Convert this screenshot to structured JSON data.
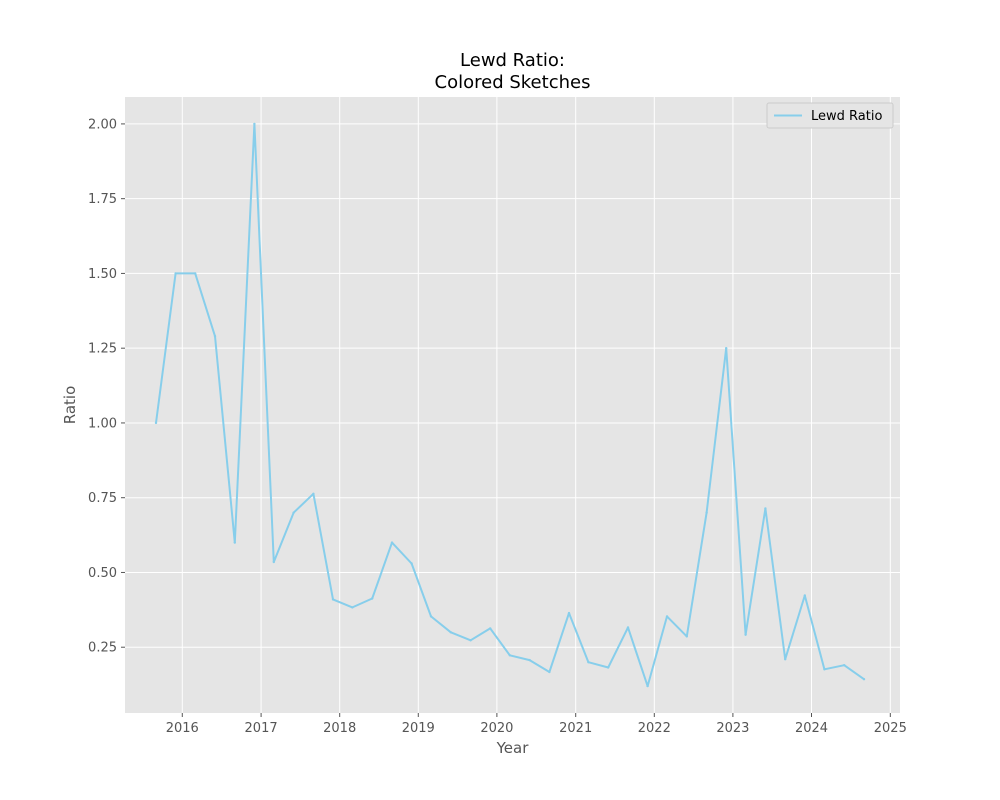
{
  "chart_data": {
    "type": "line",
    "title": [
      "Lewd Ratio:",
      "Colored Sketches"
    ],
    "xlabel": "Year",
    "ylabel": "Ratio",
    "x_ticks": [
      "2016",
      "2017",
      "2018",
      "2019",
      "2020",
      "2021",
      "2022",
      "2023",
      "2024",
      "2025"
    ],
    "y_ticks": [
      "0.25",
      "0.50",
      "0.75",
      "1.00",
      "1.25",
      "1.50",
      "1.75",
      "2.00"
    ],
    "xlim": [
      "2015-04-10",
      "2025-02-15"
    ],
    "ylim": [
      0.03,
      2.09
    ],
    "grid": true,
    "legend_position": "top-right",
    "series": [
      {
        "name": "Lewd Ratio",
        "color": "#87ceeb",
        "points": [
          [
            "2015-09",
            1.0
          ],
          [
            "2015-12",
            1.5
          ],
          [
            "2016-03",
            1.5
          ],
          [
            "2016-06",
            1.29
          ],
          [
            "2016-09",
            0.6
          ],
          [
            "2016-12",
            2.0
          ],
          [
            "2017-03",
            0.535
          ],
          [
            "2017-06",
            0.7
          ],
          [
            "2017-09",
            0.763
          ],
          [
            "2017-12",
            0.41
          ],
          [
            "2018-03",
            0.383
          ],
          [
            "2018-06",
            0.413
          ],
          [
            "2018-09",
            0.6
          ],
          [
            "2018-12",
            0.53
          ],
          [
            "2019-03",
            0.353
          ],
          [
            "2019-06",
            0.3
          ],
          [
            "2019-09",
            0.273
          ],
          [
            "2019-12",
            0.313
          ],
          [
            "2020-03",
            0.223
          ],
          [
            "2020-06",
            0.207
          ],
          [
            "2020-09",
            0.167
          ],
          [
            "2020-12",
            0.364
          ],
          [
            "2021-03",
            0.2
          ],
          [
            "2021-06",
            0.182
          ],
          [
            "2021-09",
            0.316
          ],
          [
            "2021-12",
            0.12
          ],
          [
            "2022-03",
            0.353
          ],
          [
            "2022-06",
            0.286
          ],
          [
            "2022-09",
            0.7
          ],
          [
            "2022-12",
            1.25
          ],
          [
            "2023-03",
            0.292
          ],
          [
            "2023-06",
            0.714
          ],
          [
            "2023-09",
            0.21
          ],
          [
            "2023-12",
            0.423
          ],
          [
            "2024-03",
            0.176
          ],
          [
            "2024-06",
            0.19
          ],
          [
            "2024-09",
            0.143
          ]
        ]
      }
    ]
  }
}
